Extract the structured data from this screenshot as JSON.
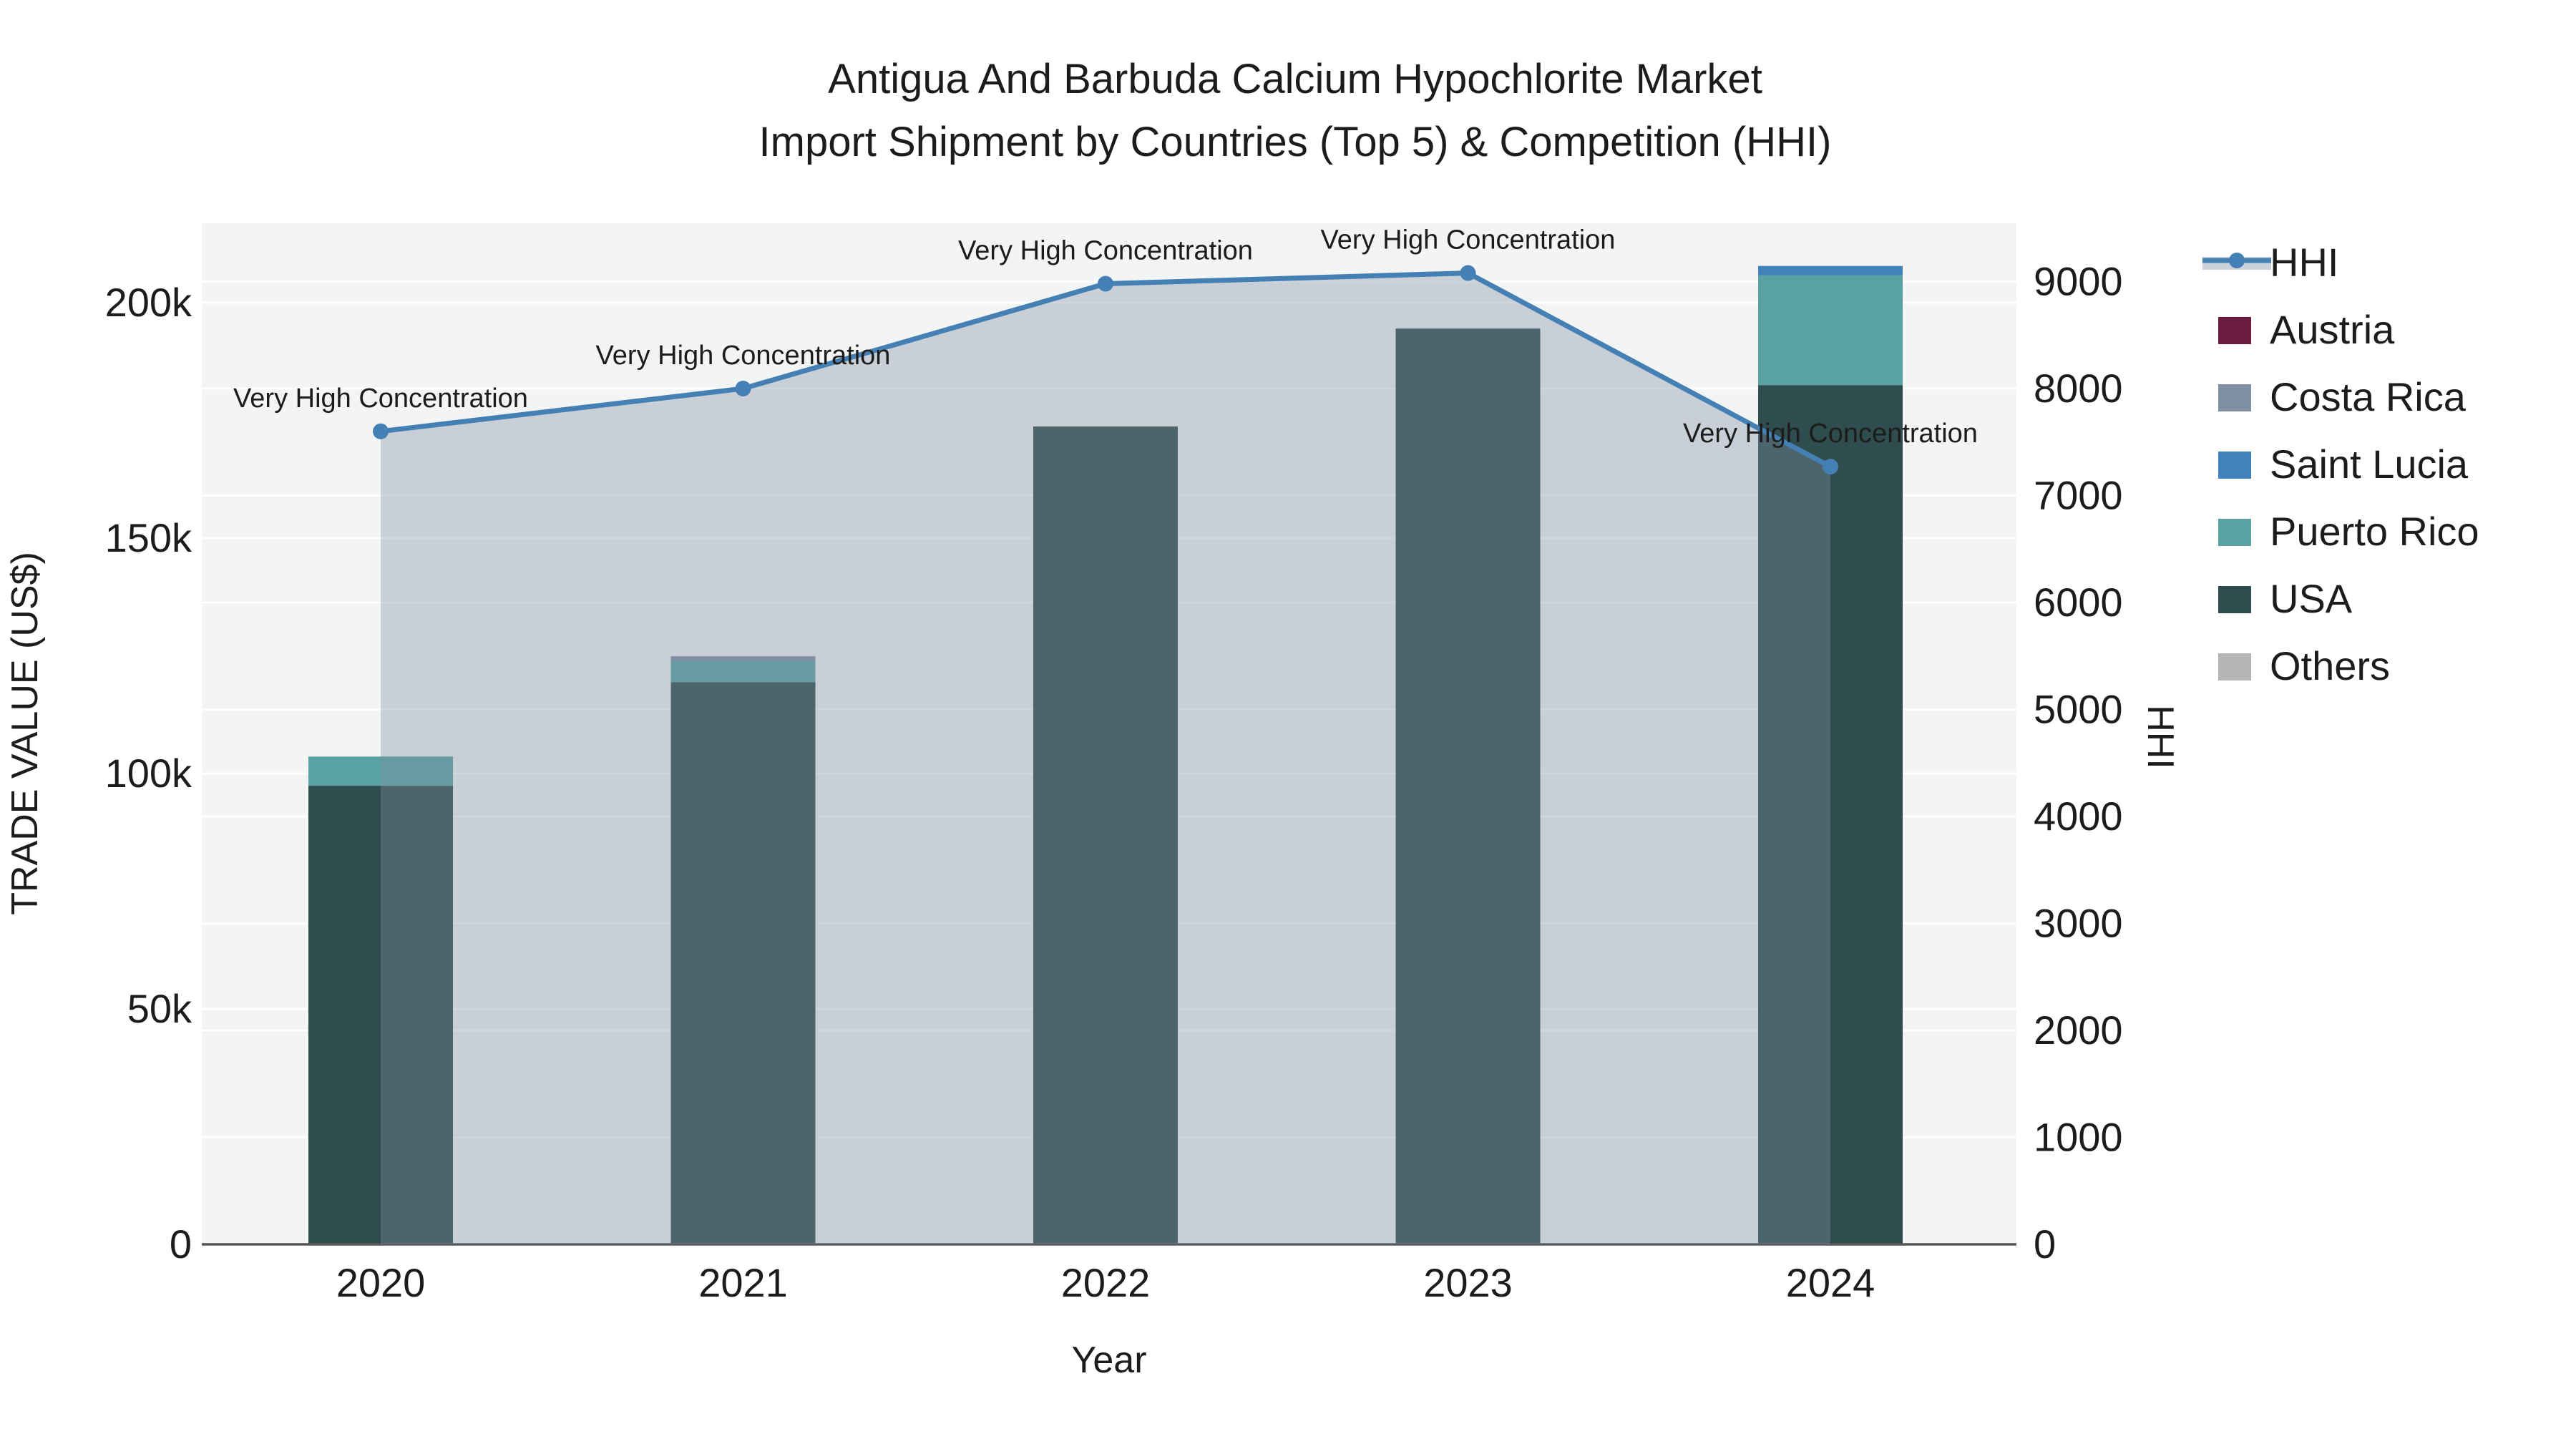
{
  "chart_data": {
    "type": "bar+line",
    "title_line1": "Antigua And Barbuda Calcium Hypochlorite Market",
    "title_line2": "Import Shipment by Countries (Top 5) & Competition (HHI)",
    "categories": [
      "2020",
      "2021",
      "2022",
      "2023",
      "2024"
    ],
    "bar_series": [
      {
        "name": "USA",
        "color": "#2F4C4E",
        "values": [
          97400,
          119400,
          173700,
          194500,
          182500
        ]
      },
      {
        "name": "Puerto Rico",
        "color": "#58A3A1",
        "values": [
          6200,
          4400,
          0,
          0,
          23300
        ]
      },
      {
        "name": "Saint Lucia",
        "color": "#4282BC",
        "values": [
          0,
          0,
          0,
          0,
          2000
        ]
      },
      {
        "name": "Costa Rica",
        "color": "#7D8FA0",
        "values": [
          0,
          1100,
          0,
          0,
          0
        ]
      },
      {
        "name": "Austria",
        "color": "#6B1C3E",
        "values": [
          0,
          0,
          0,
          0,
          0
        ]
      },
      {
        "name": "Others",
        "color": "#B2B5B2",
        "values": [
          0,
          0,
          0,
          0,
          0
        ]
      }
    ],
    "line_series": {
      "name": "HHI",
      "color": "#4580B4",
      "area_fill_rgba": "rgba(127,144,163,0.37)",
      "values": [
        7600,
        8000,
        8980,
        9080,
        7270
      ]
    },
    "annotations": [
      {
        "text": "Very High Concentration",
        "year": "2020"
      },
      {
        "text": "Very High Concentration",
        "year": "2021"
      },
      {
        "text": "Very High Concentration",
        "year": "2022"
      },
      {
        "text": "Very High Concentration",
        "year": "2023"
      },
      {
        "text": "Very High Concentration",
        "year": "2024"
      }
    ],
    "x_axis": {
      "label": "Year",
      "tick_labels": [
        "2020",
        "2021",
        "2022",
        "2023",
        "2024"
      ]
    },
    "y_left": {
      "label": "TRADE VALUE (US$)",
      "tick_labels": [
        "0",
        "50k",
        "100k",
        "150k",
        "200k"
      ],
      "tick_values": [
        0,
        50000,
        100000,
        150000,
        200000
      ],
      "range": [
        0,
        216800
      ],
      "grid": true
    },
    "y_right": {
      "label": "HHI",
      "tick_labels": [
        "0",
        "1000",
        "2000",
        "3000",
        "4000",
        "5000",
        "6000",
        "7000",
        "8000",
        "9000"
      ],
      "tick_values": [
        0,
        1000,
        2000,
        3000,
        4000,
        5000,
        6000,
        7000,
        8000,
        9000
      ],
      "range": [
        0,
        9545
      ],
      "grid": true
    },
    "legend": {
      "position": "right",
      "entries": [
        {
          "label": "HHI",
          "type": "line",
          "color": "#4580B4",
          "band_color": "#CBD2DB"
        },
        {
          "label": "Austria",
          "type": "swatch",
          "color": "#6B1C3E"
        },
        {
          "label": "Costa Rica",
          "type": "swatch",
          "color": "#7D8FA0"
        },
        {
          "label": "Saint Lucia",
          "type": "swatch",
          "color": "#4282BC"
        },
        {
          "label": "Puerto Rico",
          "type": "swatch",
          "color": "#58A3A1"
        },
        {
          "label": "USA",
          "type": "swatch",
          "color": "#2F4C4E"
        },
        {
          "label": "Others",
          "type": "swatch",
          "color": "#B2B5B2"
        }
      ]
    },
    "colors": {
      "plot_bg": "#f3f4f4",
      "grid": "#ffffff",
      "zeroline": "#565656",
      "text": "#1c1c1c"
    }
  }
}
